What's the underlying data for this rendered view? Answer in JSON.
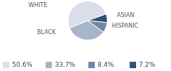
{
  "chart_data": {
    "type": "pie",
    "categories": [
      "WHITE",
      "BLACK",
      "HISPANIC",
      "ASIAN"
    ],
    "values": [
      50.6,
      33.7,
      8.4,
      7.2
    ],
    "value_labels": [
      "50.6%",
      "33.7%",
      "8.4%",
      "7.2%"
    ],
    "colors": [
      "#d9dee8",
      "#a7b5c9",
      "#6f88a6",
      "#2f5377"
    ],
    "legend": "bottom"
  }
}
